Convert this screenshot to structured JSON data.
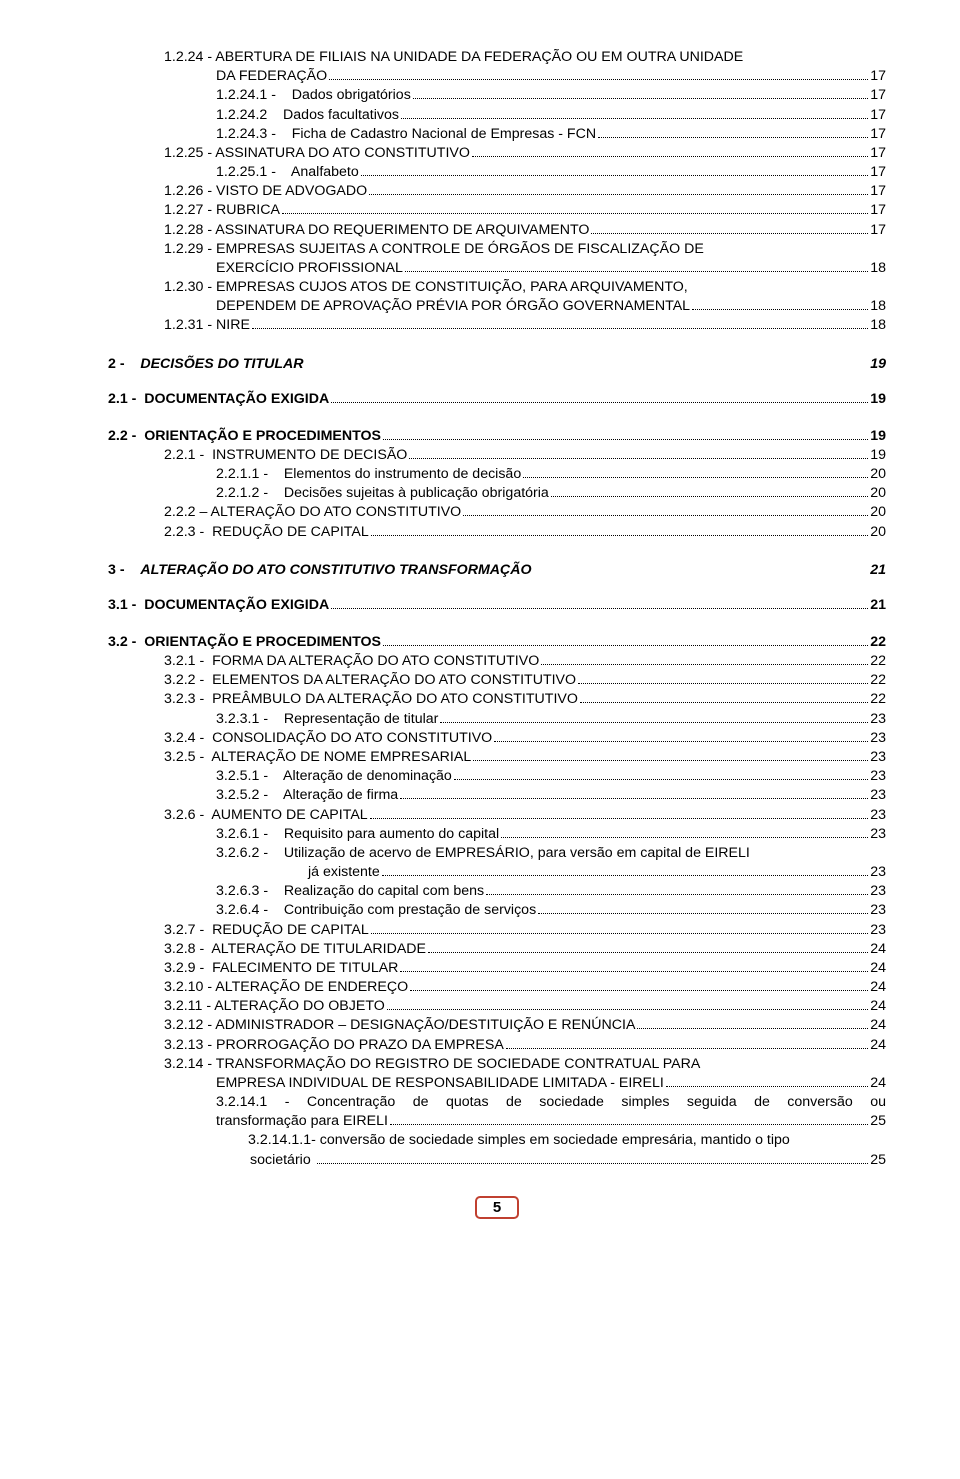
{
  "fontsize_pt": 11,
  "text_color": "#000000",
  "accent_border": "#c04030",
  "page_number": "5",
  "lines": [
    {
      "indent": "ind1",
      "text": "1.2.24 - ABERTURA DE FILIAIS NA UNIDADE DA FEDERAÇÃO OU EM OUTRA UNIDADE",
      "page": ""
    },
    {
      "indent": "ind2",
      "text": "DA FEDERAÇÃO",
      "page": "17",
      "leader": true
    },
    {
      "indent": "ind2",
      "text": "1.2.24.1 -    Dados obrigatórios",
      "page": "17",
      "leader": true
    },
    {
      "indent": "ind2",
      "text": "1.2.24.2    Dados facultativos",
      "page": "17",
      "leader": true
    },
    {
      "indent": "ind2",
      "text": "1.2.24.3 -    Ficha de Cadastro Nacional de Empresas - FCN",
      "page": "17",
      "leader": true
    },
    {
      "indent": "ind1",
      "text": "1.2.25 - ASSINATURA DO ATO CONSTITUTIVO",
      "page": "17",
      "leader": true
    },
    {
      "indent": "ind2",
      "text": "1.2.25.1 -    Analfabeto",
      "page": "17",
      "leader": true
    },
    {
      "indent": "ind1",
      "text": "1.2.26 - VISTO DE ADVOGADO",
      "page": "17",
      "leader": true
    },
    {
      "indent": "ind1",
      "text": "1.2.27 - RUBRICA",
      "page": "17",
      "leader": true
    },
    {
      "indent": "ind1",
      "text": "1.2.28 - ASSINATURA DO REQUERIMENTO DE ARQUIVAMENTO",
      "page": "17",
      "leader": true
    },
    {
      "indent": "ind1",
      "text": "1.2.29 - EMPRESAS SUJEITAS A CONTROLE DE ÓRGÃOS DE FISCALIZAÇÃO DE",
      "page": ""
    },
    {
      "indent": "ind-ex",
      "text": "EXERCÍCIO PROFISSIONAL",
      "page": "18",
      "leader": true
    },
    {
      "indent": "ind1",
      "text": "1.2.30 - EMPRESAS CUJOS ATOS DE CONSTITUIÇÃO, PARA ARQUIVAMENTO,",
      "page": ""
    },
    {
      "indent": "ind-ex",
      "text": "DEPENDEM DE APROVAÇÃO PRÉVIA POR ÓRGÃO GOVERNAMENTAL",
      "page": "18",
      "leader": true
    },
    {
      "indent": "ind1",
      "text": "1.2.31 - NIRE",
      "page": "18",
      "leader": true
    }
  ],
  "section2": {
    "num": "2 -",
    "title": "DECISÕES DO TITULAR",
    "page": "19"
  },
  "lines2": [
    {
      "indent": "ind0",
      "bold": true,
      "text": "2.1 -  DOCUMENTAÇÃO EXIGIDA",
      "page": "19",
      "leader": true
    },
    {
      "gap": true
    },
    {
      "indent": "ind0",
      "bold": true,
      "text": "2.2 -  ORIENTAÇÃO E PROCEDIMENTOS",
      "page": "19",
      "leader": true
    },
    {
      "indent": "ind1",
      "text": "2.2.1 -  INSTRUMENTO DE DECISÃO",
      "page": "19",
      "leader": true
    },
    {
      "indent": "ind2",
      "text": "2.2.1.1 -    Elementos do instrumento de decisão",
      "page": "20",
      "leader": true
    },
    {
      "indent": "ind2",
      "text": "2.2.1.2 -    Decisões sujeitas à publicação obrigatória",
      "page": "20",
      "leader": true
    },
    {
      "indent": "ind1",
      "text": "2.2.2 – ALTERAÇÃO DO ATO CONSTITUTIVO",
      "page": "20",
      "leader": true
    },
    {
      "indent": "ind1",
      "text": "2.2.3 -  REDUÇÃO DE CAPITAL",
      "page": "20",
      "leader": true
    }
  ],
  "section3": {
    "num": "3 -",
    "title": "ALTERAÇÃO DO ATO CONSTITUTIVO TRANSFORMAÇÃO",
    "page": "21"
  },
  "lines3": [
    {
      "indent": "ind0",
      "bold": true,
      "text": "3.1 -  DOCUMENTAÇÃO EXIGIDA",
      "page": "21",
      "leader": true
    },
    {
      "gap": true
    },
    {
      "indent": "ind0",
      "bold": true,
      "text": "3.2 -  ORIENTAÇÃO E PROCEDIMENTOS",
      "page": "22",
      "leader": true
    },
    {
      "indent": "ind1",
      "text": "3.2.1 -  FORMA DA ALTERAÇÃO DO ATO CONSTITUTIVO",
      "page": "22",
      "leader": true
    },
    {
      "indent": "ind1",
      "text": "3.2.2 -  ELEMENTOS DA ALTERAÇÃO DO ATO CONSTITUTIVO",
      "page": "22",
      "leader": true
    },
    {
      "indent": "ind1",
      "text": "3.2.3 -  PREÂMBULO DA ALTERAÇÃO DO ATO CONSTITUTIVO",
      "page": "22",
      "leader": true
    },
    {
      "indent": "ind2",
      "text": "3.2.3.1 -    Representação de titular",
      "page": "23",
      "leader": true
    },
    {
      "indent": "ind1",
      "text": "3.2.4 -  CONSOLIDAÇÃO DO ATO CONSTITUTIVO",
      "page": "23",
      "leader": true
    },
    {
      "indent": "ind1",
      "text": "3.2.5 -  ALTERAÇÃO DE NOME EMPRESARIAL",
      "page": "23",
      "leader": true
    },
    {
      "indent": "ind2",
      "text": "3.2.5.1 -    Alteração de denominação",
      "page": "23",
      "leader": true
    },
    {
      "indent": "ind2",
      "text": "3.2.5.2 -    Alteração de firma",
      "page": "23",
      "leader": true
    },
    {
      "indent": "ind1",
      "text": "3.2.6 -  AUMENTO DE CAPITAL",
      "page": "23",
      "leader": true
    },
    {
      "indent": "ind2",
      "text": "3.2.6.1 -    Requisito para aumento do capital",
      "page": "23",
      "leader": true
    },
    {
      "indent": "ind2",
      "text": "3.2.6.2 -    Utilização de acervo de EMPRESÁRIO, para versão em capital de EIRELI",
      "page": ""
    },
    {
      "indent": "ind-ja",
      "text": "já existente",
      "page": "23",
      "leader": true
    },
    {
      "indent": "ind2",
      "text": "3.2.6.3 -    Realização do capital com bens",
      "page": "23",
      "leader": true
    },
    {
      "indent": "ind2",
      "text": "3.2.6.4 -    Contribuição com prestação de serviços",
      "page": "23",
      "leader": true
    },
    {
      "indent": "ind1",
      "text": "3.2.7 -  REDUÇÃO DE CAPITAL",
      "page": "23",
      "leader": true
    },
    {
      "indent": "ind1",
      "text": "3.2.8 -  ALTERAÇÃO DE TITULARIDADE",
      "page": "24",
      "leader": true
    },
    {
      "indent": "ind1",
      "text": "3.2.9 -  FALECIMENTO DE TITULAR",
      "page": "24",
      "leader": true
    },
    {
      "indent": "ind1",
      "text": "3.2.10 - ALTERAÇÃO DE ENDEREÇO",
      "page": "24",
      "leader": true
    },
    {
      "indent": "ind1",
      "text": "3.2.11 - ALTERAÇÃO DO OBJETO",
      "page": "24",
      "leader": true
    },
    {
      "indent": "ind1",
      "text": "3.2.12 - ADMINISTRADOR – DESIGNAÇÃO/DESTITUIÇÃO E RENÚNCIA",
      "page": "24",
      "leader": true
    },
    {
      "indent": "ind1",
      "text": "3.2.13 - PRORROGAÇÃO DO PRAZO DA EMPRESA",
      "page": "24",
      "leader": true
    },
    {
      "indent": "ind1",
      "text": "3.2.14 - TRANSFORMAÇÃO DO REGISTRO DE SOCIEDADE CONTRATUAL PARA",
      "page": ""
    },
    {
      "indent": "ind-ex",
      "text": "EMPRESA INDIVIDUAL DE RESPONSABILIDADE LIMITADA - EIRELI",
      "page": "24",
      "leader": true
    }
  ],
  "justify1": {
    "pre": "3.2.14.1 - Concentração de quotas de sociedade simples seguida de conversão ou",
    "line2": "transformação para EIRELI",
    "page": "25"
  },
  "lines4": [
    {
      "indent": "ind3",
      "text": "3.2.14.1.1- conversão de sociedade simples em sociedade empresária, mantido o tipo",
      "page": ""
    },
    {
      "indent": "ind-soc",
      "text": "societário ",
      "page": "25",
      "leader": true
    }
  ]
}
